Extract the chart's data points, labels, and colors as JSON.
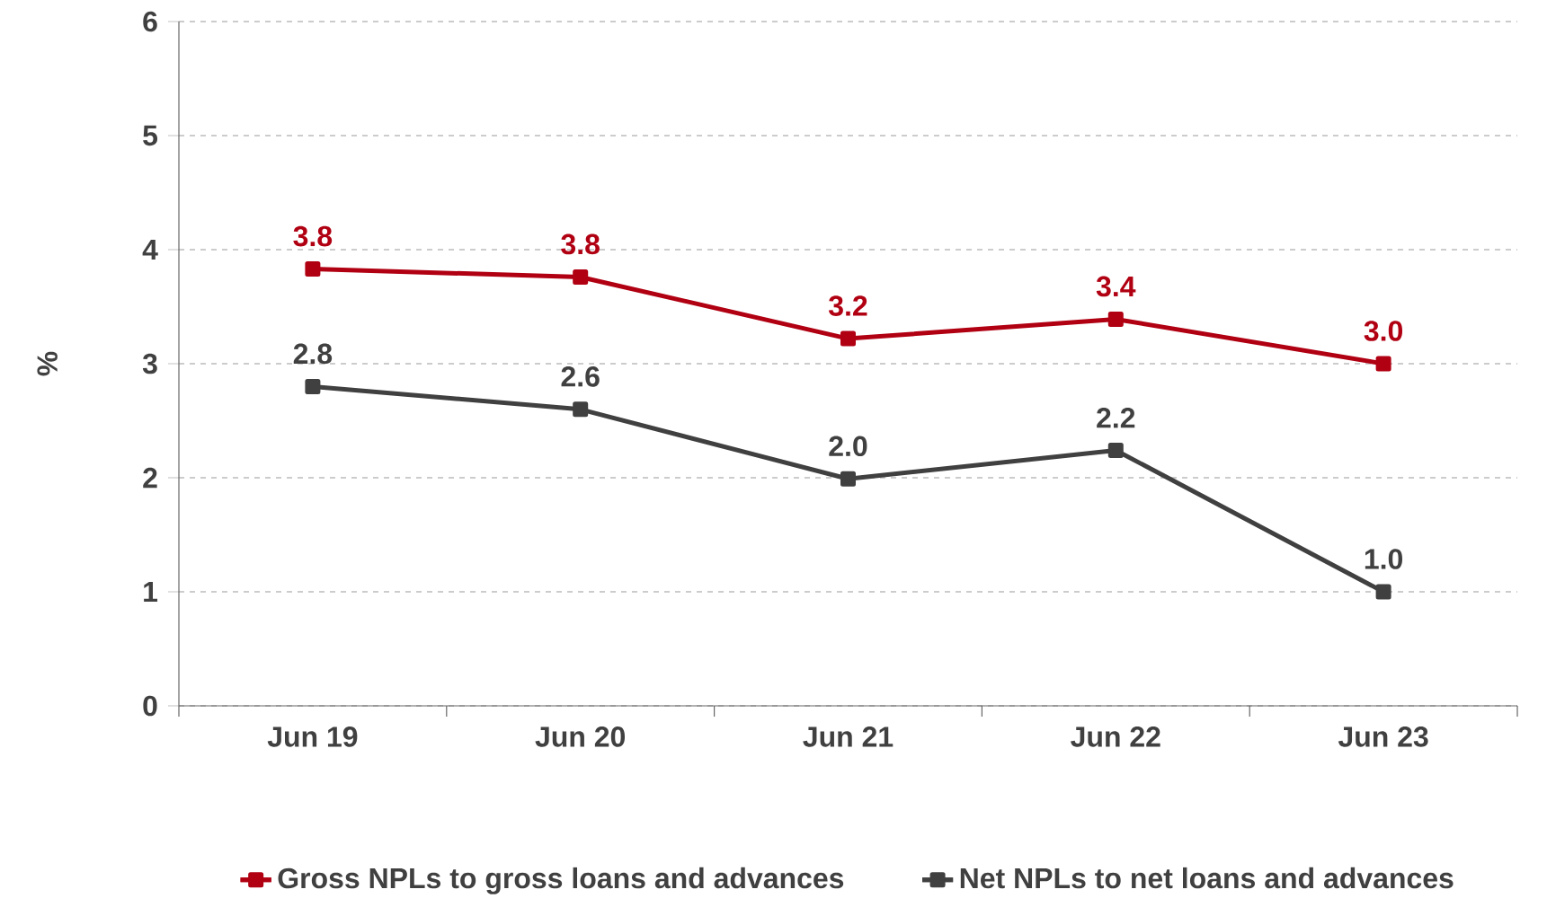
{
  "chart_data": {
    "type": "line",
    "ylabel": "%",
    "categories": [
      "Jun 19",
      "Jun 20",
      "Jun 21",
      "Jun 22",
      "Jun 23"
    ],
    "series": [
      {
        "name": "Gross NPLs to gross loans and advances",
        "color": "#b00012",
        "values": [
          3.83,
          3.76,
          3.22,
          3.39,
          3.0
        ],
        "value_labels": [
          "3.8",
          "3.8",
          "3.2",
          "3.4",
          "3.0"
        ]
      },
      {
        "name": "Net NPLs to net loans and advances",
        "color": "#404040",
        "values": [
          2.8,
          2.6,
          1.99,
          2.24,
          1.0
        ],
        "value_labels": [
          "2.8",
          "2.6",
          "2.0",
          "2.2",
          "1.0"
        ]
      }
    ],
    "ylim": [
      0,
      6
    ],
    "yticks": [
      0,
      1,
      2,
      3,
      4,
      5,
      6
    ],
    "grid": "y",
    "legend": "bottom",
    "marker": "square",
    "line_style": "solid"
  }
}
